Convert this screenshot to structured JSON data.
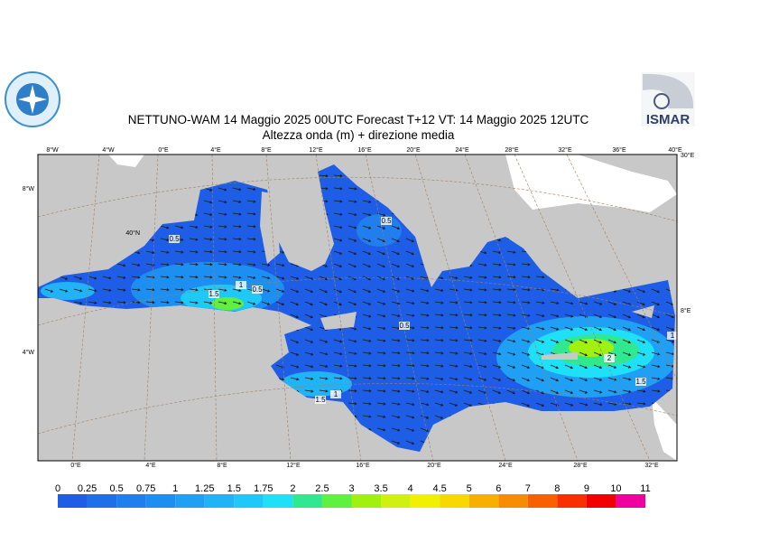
{
  "header": {
    "title": "NETTUNO-WAM  14   Maggio  2025 00UTC Forecast T+12 VT: 14   Maggio  2025 12UTC",
    "subtitle": "Altezza onda (m) + direzione media",
    "logo_text": "ISMAR"
  },
  "map": {
    "lon_top": [
      "8°W",
      "4°W",
      "0°E",
      "4°E",
      "8°E",
      "12°E",
      "16°E",
      "20°E",
      "24°E",
      "28°E",
      "32°E",
      "36°E",
      "40°E"
    ],
    "lon_bottom": [
      "0°E",
      "4°E",
      "8°E",
      "12°E",
      "16°E",
      "20°E",
      "24°E",
      "28°E",
      "32°E"
    ],
    "lat_left": [
      "8°W",
      "40°N",
      "4°W"
    ],
    "lat_right": [
      "30°E",
      "8°E"
    ],
    "contour_labels": [
      "0.5",
      "1",
      "0.5",
      "1.5",
      "0.5",
      "0.5",
      "1",
      "1.5",
      "2",
      "1.5",
      "1"
    ]
  },
  "legend": {
    "levels": [
      0,
      0.25,
      0.5,
      0.75,
      1,
      1.25,
      1.5,
      1.75,
      2,
      2.5,
      3,
      3.5,
      4,
      4.5,
      5,
      6,
      7,
      8,
      9,
      10,
      11
    ],
    "colors": [
      "#1e5ee6",
      "#1f6eea",
      "#207eee",
      "#1e8ff2",
      "#1fa0f5",
      "#20b4f7",
      "#1ec8f8",
      "#20e0f8",
      "#30e890",
      "#60f040",
      "#a0f010",
      "#d0f010",
      "#f0f000",
      "#f8d800",
      "#f8b000",
      "#f88c00",
      "#f86000",
      "#f83000",
      "#f00000",
      "#f000a0"
    ]
  }
}
